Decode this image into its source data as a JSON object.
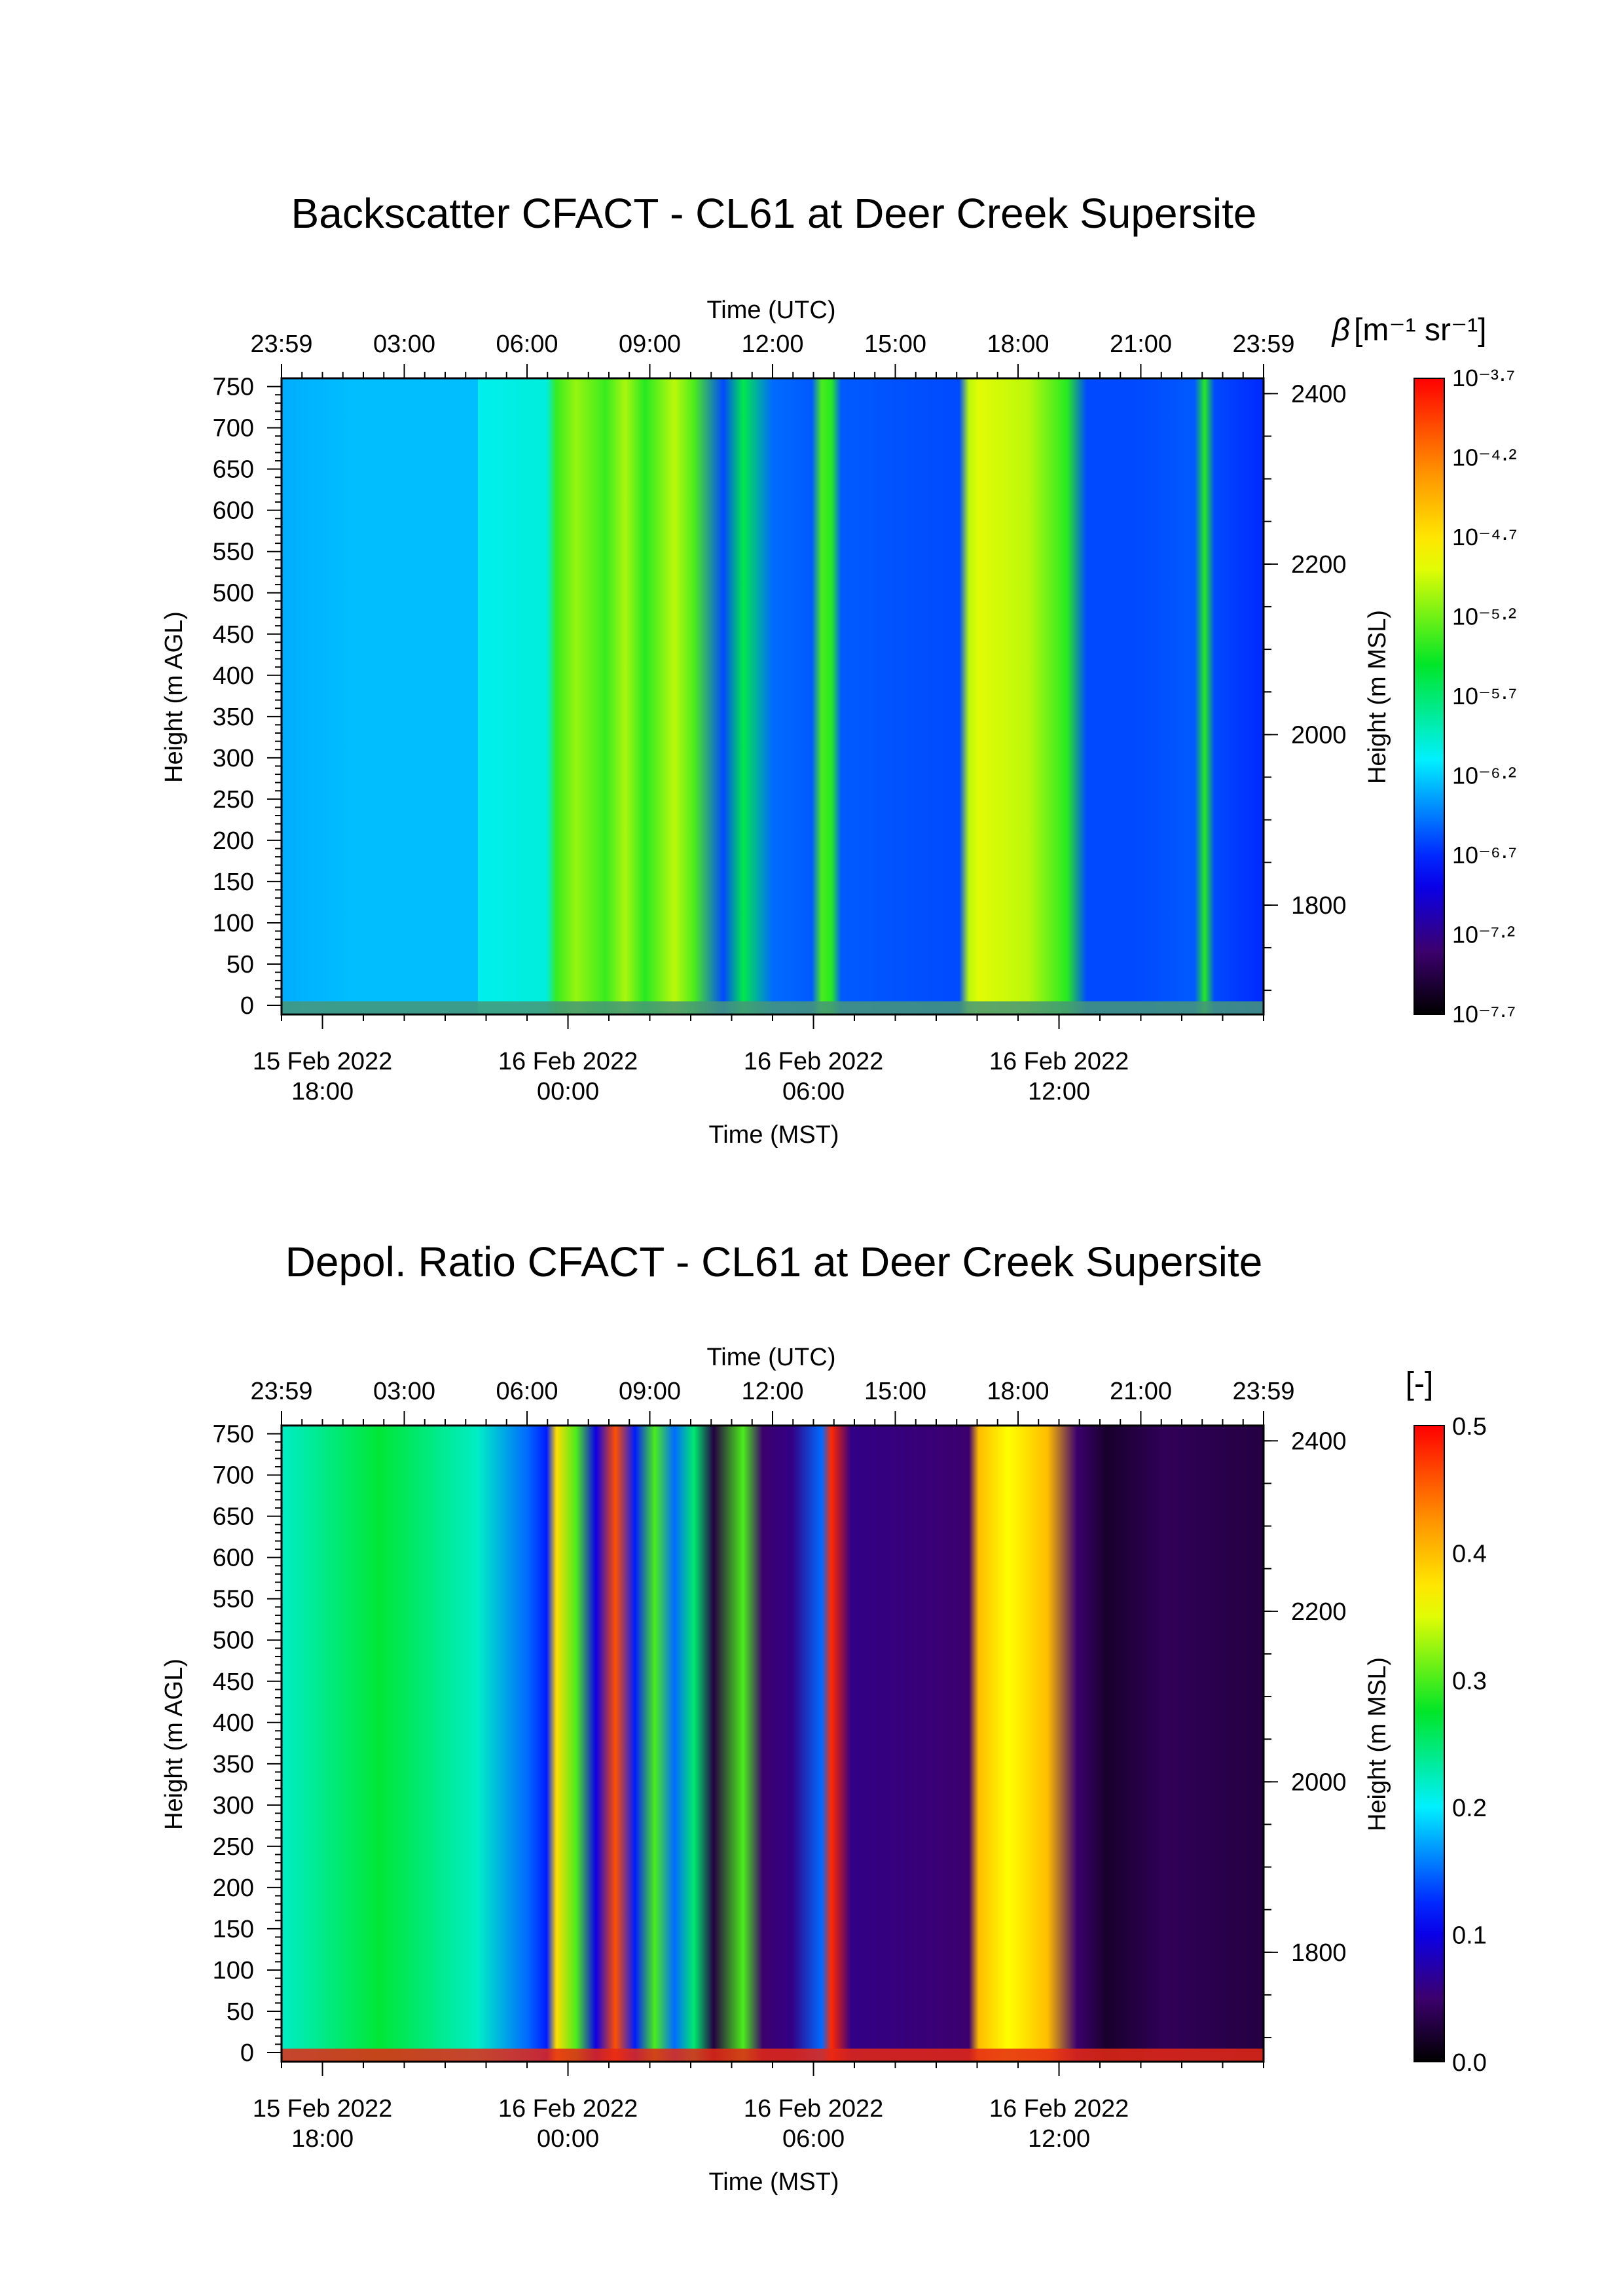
{
  "chart_data": [
    {
      "type": "heatmap",
      "title": "Backscatter CFACT - CL61 at Deer Creek Supersite",
      "top_axis": {
        "label": "Time (UTC)",
        "ticks": [
          "23:59",
          "03:00",
          "06:00",
          "09:00",
          "12:00",
          "15:00",
          "18:00",
          "21:00",
          "23:59"
        ]
      },
      "bottom_axis": {
        "label": "Time (MST)",
        "ticks": [
          {
            "date": "15 Feb 2022",
            "time": "18:00"
          },
          {
            "date": "16 Feb 2022",
            "time": "00:00"
          },
          {
            "date": "16 Feb 2022",
            "time": "06:00"
          },
          {
            "date": "16 Feb 2022",
            "time": "12:00"
          }
        ]
      },
      "left_axis": {
        "label": "Height (m AGL)",
        "range": [
          0,
          760
        ],
        "ticks": [
          "0",
          "50",
          "100",
          "150",
          "200",
          "250",
          "300",
          "350",
          "400",
          "450",
          "500",
          "550",
          "600",
          "650",
          "700",
          "750"
        ]
      },
      "right_axis": {
        "label": "Height (m MSL)",
        "ticks": [
          "1800",
          "2000",
          "2200",
          "2400"
        ]
      },
      "colorbar": {
        "label_symbol": "β",
        "label_units": "[m⁻¹ sr⁻¹]",
        "scale": "log",
        "range_log10": [
          -7.7,
          -3.7
        ],
        "ticks": [
          "10⁻³·⁷",
          "10⁻⁴·²",
          "10⁻⁴·⁷",
          "10⁻⁵·²",
          "10⁻⁵·⁷",
          "10⁻⁶·²",
          "10⁻⁶·⁷",
          "10⁻⁷·²",
          "10⁻⁷·⁷"
        ]
      },
      "time_profile_log10": [
        [
          0.0,
          -6.3
        ],
        [
          0.07,
          -6.25
        ],
        [
          0.2,
          -6.25
        ],
        [
          0.2,
          -6.05
        ],
        [
          0.27,
          -6.0
        ],
        [
          0.28,
          -5.35
        ],
        [
          0.3,
          -5.1
        ],
        [
          0.33,
          -5.35
        ],
        [
          0.35,
          -5.05
        ],
        [
          0.37,
          -5.4
        ],
        [
          0.4,
          -5.0
        ],
        [
          0.42,
          -5.3
        ],
        [
          0.45,
          -6.6
        ],
        [
          0.47,
          -5.6
        ],
        [
          0.5,
          -6.5
        ],
        [
          0.54,
          -6.55
        ],
        [
          0.55,
          -5.3
        ],
        [
          0.56,
          -5.4
        ],
        [
          0.57,
          -6.55
        ],
        [
          0.69,
          -6.6
        ],
        [
          0.7,
          -5.0
        ],
        [
          0.71,
          -4.9
        ],
        [
          0.76,
          -5.0
        ],
        [
          0.8,
          -5.4
        ],
        [
          0.82,
          -6.6
        ],
        [
          0.87,
          -6.6
        ],
        [
          0.93,
          -6.55
        ],
        [
          0.94,
          -5.4
        ],
        [
          0.95,
          -6.6
        ],
        [
          1.0,
          -6.7
        ]
      ]
    },
    {
      "type": "heatmap",
      "title": "Depol. Ratio CFACT - CL61 at Deer Creek Supersite",
      "top_axis": {
        "label": "Time (UTC)",
        "ticks": [
          "23:59",
          "03:00",
          "06:00",
          "09:00",
          "12:00",
          "15:00",
          "18:00",
          "21:00",
          "23:59"
        ]
      },
      "bottom_axis": {
        "label": "Time (MST)",
        "ticks": [
          {
            "date": "15 Feb 2022",
            "time": "18:00"
          },
          {
            "date": "16 Feb 2022",
            "time": "00:00"
          },
          {
            "date": "16 Feb 2022",
            "time": "06:00"
          },
          {
            "date": "16 Feb 2022",
            "time": "12:00"
          }
        ]
      },
      "left_axis": {
        "label": "Height (m AGL)",
        "range": [
          0,
          760
        ],
        "ticks": [
          "0",
          "50",
          "100",
          "150",
          "200",
          "250",
          "300",
          "350",
          "400",
          "450",
          "500",
          "550",
          "600",
          "650",
          "700",
          "750"
        ]
      },
      "right_axis": {
        "label": "Height (m MSL)",
        "ticks": [
          "1800",
          "2000",
          "2200",
          "2400"
        ]
      },
      "colorbar": {
        "label": "[-]",
        "scale": "linear",
        "range": [
          0.0,
          0.5
        ],
        "ticks": [
          "0.5",
          "0.4",
          "0.3",
          "0.2",
          "0.1",
          "0.0"
        ]
      },
      "time_profile": [
        [
          0.0,
          0.22
        ],
        [
          0.1,
          0.27
        ],
        [
          0.2,
          0.22
        ],
        [
          0.25,
          0.15
        ],
        [
          0.27,
          0.12
        ],
        [
          0.28,
          0.38
        ],
        [
          0.3,
          0.3
        ],
        [
          0.32,
          0.1
        ],
        [
          0.34,
          0.46
        ],
        [
          0.36,
          0.12
        ],
        [
          0.38,
          0.3
        ],
        [
          0.4,
          0.15
        ],
        [
          0.42,
          0.25
        ],
        [
          0.44,
          0.03
        ],
        [
          0.47,
          0.3
        ],
        [
          0.49,
          0.05
        ],
        [
          0.52,
          0.06
        ],
        [
          0.55,
          0.15
        ],
        [
          0.56,
          0.48
        ],
        [
          0.58,
          0.06
        ],
        [
          0.7,
          0.05
        ],
        [
          0.71,
          0.4
        ],
        [
          0.74,
          0.36
        ],
        [
          0.78,
          0.4
        ],
        [
          0.81,
          0.05
        ],
        [
          0.84,
          0.02
        ],
        [
          0.9,
          0.04
        ],
        [
          1.0,
          0.03
        ]
      ]
    }
  ]
}
